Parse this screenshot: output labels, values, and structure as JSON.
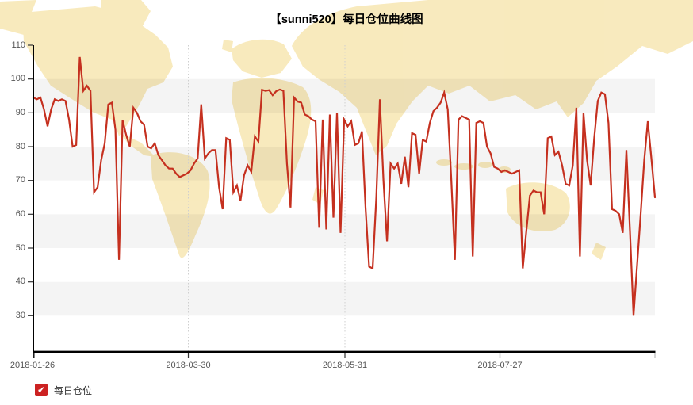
{
  "chart": {
    "title": "【sunni520】每日仓位曲线图"
  },
  "legend": {
    "label": "每日仓位",
    "checked": true,
    "checkbox_color": "#cc2222"
  },
  "colors": {
    "line": "#c5301f",
    "map_land": "#f8e9ba",
    "grid": "#cfcfcf"
  },
  "chart_data": {
    "type": "line",
    "title": "【sunni520】每日仓位曲线图",
    "xlabel": "",
    "ylabel": "",
    "ylim": [
      30,
      110
    ],
    "grid": "vertical-dotted, alternating horizontal gray bands every 10 units",
    "legend_position": "bottom-left",
    "x_tick_labels": [
      "2018-01-26",
      "2018-03-30",
      "2018-05-31",
      "2018-07-27"
    ],
    "y_ticks": [
      110,
      100,
      90,
      80,
      70,
      60,
      50,
      40,
      30
    ],
    "series": [
      {
        "name": "每日仓位",
        "color": "#c5301f",
        "values": [
          94.5,
          94,
          94.5,
          91,
          86,
          91,
          94,
          93.5,
          94,
          93.5,
          88,
          80,
          80.5,
          106.5,
          96.5,
          98,
          96.5,
          66.5,
          68,
          76,
          81,
          92.5,
          93,
          85,
          46.5,
          87.8,
          83.5,
          80,
          91.5,
          90,
          87.5,
          86.5,
          80,
          79.5,
          81,
          77.5,
          76,
          74.5,
          73.5,
          73.5,
          72,
          71,
          71.5,
          72,
          73,
          75,
          76.5,
          92.5,
          76.5,
          78,
          79,
          79,
          68,
          61.5,
          82.5,
          82,
          66.5,
          68.5,
          64,
          71.5,
          74.5,
          72.5,
          83,
          81.5,
          96.8,
          96.5,
          96.7,
          95.2,
          96.4,
          96.9,
          96.5,
          75,
          62,
          94.5,
          93.3,
          93,
          89.5,
          89,
          88,
          87.5,
          56,
          88,
          55.5,
          89.5,
          59,
          90,
          54.5,
          88,
          86,
          87.5,
          80.5,
          81,
          84.5,
          62,
          44.5,
          44,
          65,
          94,
          70,
          52,
          75,
          73.5,
          75,
          69,
          77,
          68,
          84,
          83.5,
          72,
          82,
          81.5,
          87,
          90.5,
          91.5,
          93,
          96,
          91,
          70,
          46.5,
          88,
          89,
          88.5,
          88,
          47.5,
          87,
          87.5,
          87,
          80,
          78,
          74,
          73.5,
          72.5,
          73,
          72.5,
          72,
          72.5,
          73,
          44,
          55,
          65.5,
          67,
          66.5,
          66.5,
          60,
          82.5,
          83,
          77.5,
          78.5,
          74.5,
          69,
          68.5,
          74.5,
          91.5,
          47.5,
          90,
          76,
          68.5,
          82.5,
          93.5,
          96,
          95.5,
          87,
          61.5,
          61,
          60,
          54.5,
          79,
          55,
          30,
          45,
          60,
          76,
          87.5,
          76.5,
          65
        ]
      }
    ]
  }
}
